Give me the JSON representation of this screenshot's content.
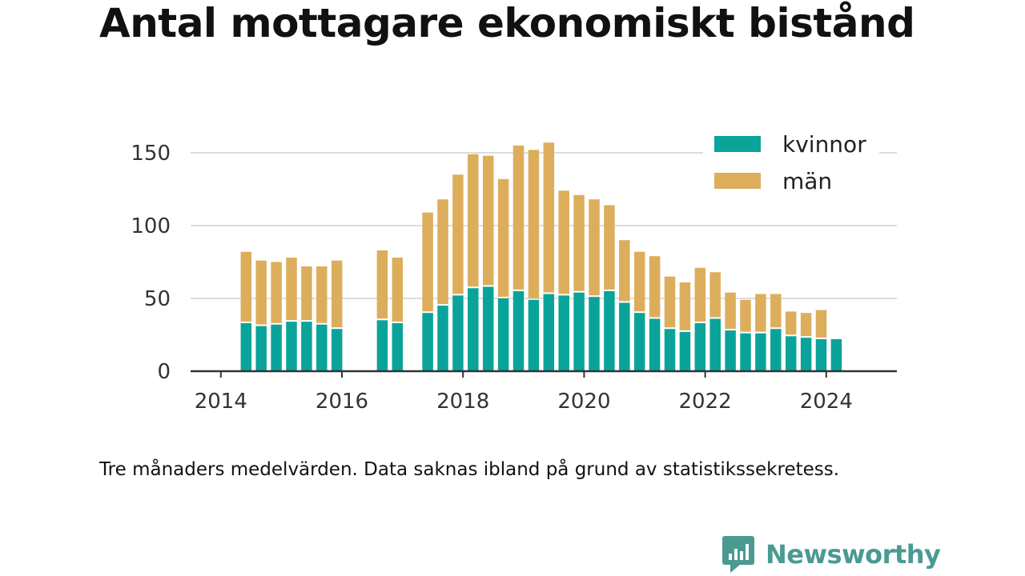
{
  "title": "Antal mottagare ekonomiskt bistånd",
  "note": "Tre månaders medelvärden. Data saknas ibland på grund av statistikssekretess.",
  "brand": {
    "name": "Newsworthy",
    "icon": "newsworthy-logo-icon",
    "color": "#4a9a92"
  },
  "chart_data": {
    "type": "bar",
    "stacked": true,
    "title": "Antal mottagare ekonomiskt bistånd",
    "xlabel": "",
    "ylabel": "",
    "ylim": [
      0,
      160
    ],
    "yticks": [
      0,
      50,
      100,
      150
    ],
    "xticks": [
      "2014",
      "2016",
      "2018",
      "2020",
      "2022",
      "2024"
    ],
    "x_range": [
      "2013-07",
      "2025-03"
    ],
    "grid": "horizontal",
    "legend_position": "top-right",
    "colors": {
      "kvinnor": "#0aa39a",
      "män": "#dcae5c",
      "grid": "#dddddd",
      "axis": "#333333"
    },
    "x": [
      "2014-06",
      "2014-09",
      "2014-12",
      "2015-03",
      "2015-06",
      "2015-09",
      "2015-12",
      "2016-09",
      "2016-12",
      "2017-06",
      "2017-09",
      "2017-12",
      "2018-03",
      "2018-06",
      "2018-09",
      "2018-12",
      "2019-03",
      "2019-06",
      "2019-09",
      "2019-12",
      "2020-03",
      "2020-06",
      "2020-09",
      "2020-12",
      "2021-03",
      "2021-06",
      "2021-09",
      "2021-12",
      "2022-03",
      "2022-06",
      "2022-09",
      "2022-12",
      "2023-03",
      "2023-06",
      "2023-09",
      "2023-12",
      "2024-03"
    ],
    "series": [
      {
        "name": "kvinnor",
        "values": [
          33,
          31,
          32,
          34,
          34,
          32,
          29,
          35,
          33,
          40,
          45,
          52,
          57,
          58,
          50,
          55,
          49,
          53,
          52,
          54,
          51,
          55,
          47,
          40,
          36,
          29,
          27,
          33,
          36,
          28,
          26,
          26,
          29,
          24,
          23,
          22,
          22
        ]
      },
      {
        "name": "män",
        "values": [
          49,
          45,
          43,
          44,
          38,
          40,
          47,
          48,
          45,
          69,
          73,
          83,
          92,
          90,
          82,
          100,
          103,
          104,
          72,
          67,
          67,
          59,
          43,
          42,
          43,
          36,
          34,
          38,
          32,
          26,
          23,
          27,
          24,
          17,
          17,
          20,
          0
        ]
      }
    ]
  }
}
